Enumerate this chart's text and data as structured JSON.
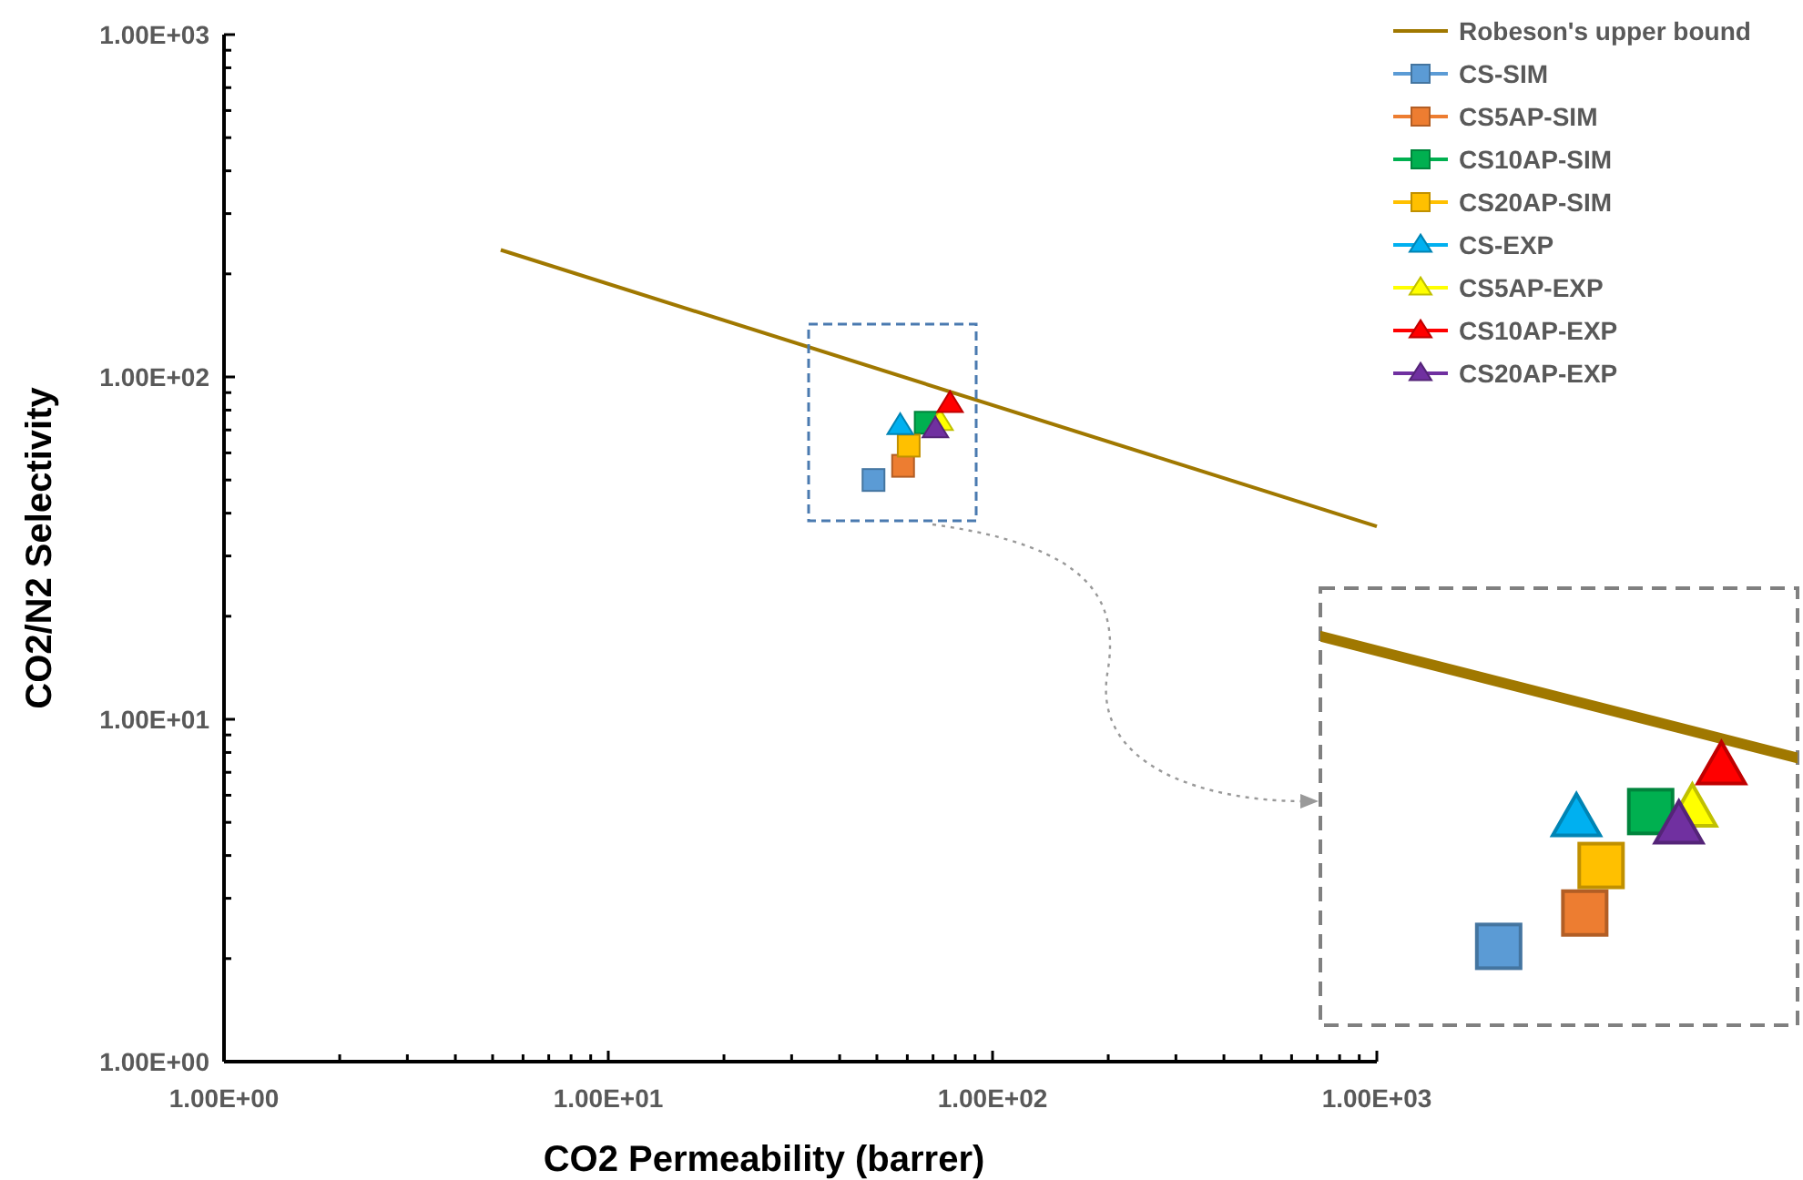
{
  "chart_data": {
    "type": "scatter",
    "xlabel": "CO2 Permeability (barrer)",
    "ylabel": "CO2/N2 Selectivity",
    "log": "xy",
    "xlim": [
      1,
      1000
    ],
    "ylim": [
      1,
      1000
    ],
    "xticks": [
      {
        "value": 1,
        "label": "1.00E+00"
      },
      {
        "value": 2,
        "label": null
      },
      {
        "value": 3,
        "label": null
      },
      {
        "value": 4,
        "label": null
      },
      {
        "value": 5,
        "label": null
      },
      {
        "value": 6,
        "label": null
      },
      {
        "value": 7,
        "label": null
      },
      {
        "value": 8,
        "label": null
      },
      {
        "value": 9,
        "label": null
      },
      {
        "value": 10,
        "label": "1.00E+01"
      },
      {
        "value": 20,
        "label": null
      },
      {
        "value": 30,
        "label": null
      },
      {
        "value": 40,
        "label": null
      },
      {
        "value": 50,
        "label": null
      },
      {
        "value": 60,
        "label": null
      },
      {
        "value": 70,
        "label": null
      },
      {
        "value": 80,
        "label": null
      },
      {
        "value": 90,
        "label": null
      },
      {
        "value": 100,
        "label": "1.00E+02"
      },
      {
        "value": 200,
        "label": null
      },
      {
        "value": 300,
        "label": null
      },
      {
        "value": 400,
        "label": null
      },
      {
        "value": 500,
        "label": null
      },
      {
        "value": 600,
        "label": null
      },
      {
        "value": 700,
        "label": null
      },
      {
        "value": 800,
        "label": null
      },
      {
        "value": 900,
        "label": null
      },
      {
        "value": 1000,
        "label": "1.00E+03"
      }
    ],
    "yticks": [
      {
        "value": 1,
        "label": "1.00E+00"
      },
      {
        "value": 2,
        "label": null
      },
      {
        "value": 3,
        "label": null
      },
      {
        "value": 4,
        "label": null
      },
      {
        "value": 5,
        "label": null
      },
      {
        "value": 6,
        "label": null
      },
      {
        "value": 7,
        "label": null
      },
      {
        "value": 8,
        "label": null
      },
      {
        "value": 9,
        "label": null
      },
      {
        "value": 10,
        "label": "1.00E+01"
      },
      {
        "value": 20,
        "label": null
      },
      {
        "value": 30,
        "label": null
      },
      {
        "value": 40,
        "label": null
      },
      {
        "value": 50,
        "label": null
      },
      {
        "value": 60,
        "label": null
      },
      {
        "value": 70,
        "label": null
      },
      {
        "value": 80,
        "label": null
      },
      {
        "value": 90,
        "label": null
      },
      {
        "value": 100,
        "label": "1.00E+02"
      },
      {
        "value": 200,
        "label": null
      },
      {
        "value": 300,
        "label": null
      },
      {
        "value": 400,
        "label": null
      },
      {
        "value": 500,
        "label": null
      },
      {
        "value": 600,
        "label": null
      },
      {
        "value": 700,
        "label": null
      },
      {
        "value": 800,
        "label": null
      },
      {
        "value": 900,
        "label": null
      },
      {
        "value": 1000,
        "label": "1.00E+03"
      }
    ],
    "grid": false,
    "legend": "top right",
    "series": [
      {
        "name": "Robeson's upper bound",
        "type": "line",
        "marker": "none",
        "color": "#a07800",
        "x": [
          5.25,
          1000
        ],
        "values": [
          235,
          36.6
        ]
      },
      {
        "name": "CS-SIM",
        "marker": "square",
        "color": "#5b9bd5",
        "x": [
          49
        ],
        "values": [
          50
        ]
      },
      {
        "name": "CS5AP-SIM",
        "marker": "square",
        "color": "#ed7d31",
        "x": [
          58.5
        ],
        "values": [
          55
        ]
      },
      {
        "name": "CS10AP-SIM",
        "marker": "square",
        "color": "#00b050",
        "x": [
          67
        ],
        "values": [
          73.5
        ]
      },
      {
        "name": "CS20AP-SIM",
        "marker": "square",
        "color": "#ffc000",
        "x": [
          60.5
        ],
        "values": [
          63
        ]
      },
      {
        "name": "CS-EXP",
        "marker": "triangle",
        "color": "#00b0f0",
        "x": [
          57.5
        ],
        "values": [
          72
        ]
      },
      {
        "name": "CS5AP-EXP",
        "marker": "triangle",
        "color": "#ffff00",
        "x": [
          73
        ],
        "values": [
          74
        ]
      },
      {
        "name": "CS10AP-EXP",
        "marker": "triangle",
        "color": "#ff0000",
        "x": [
          77.5
        ],
        "values": [
          83.5
        ]
      },
      {
        "name": "CS20AP-EXP",
        "marker": "triangle",
        "color": "#7030a0",
        "x": [
          71
        ],
        "values": [
          70.5
        ]
      }
    ]
  }
}
